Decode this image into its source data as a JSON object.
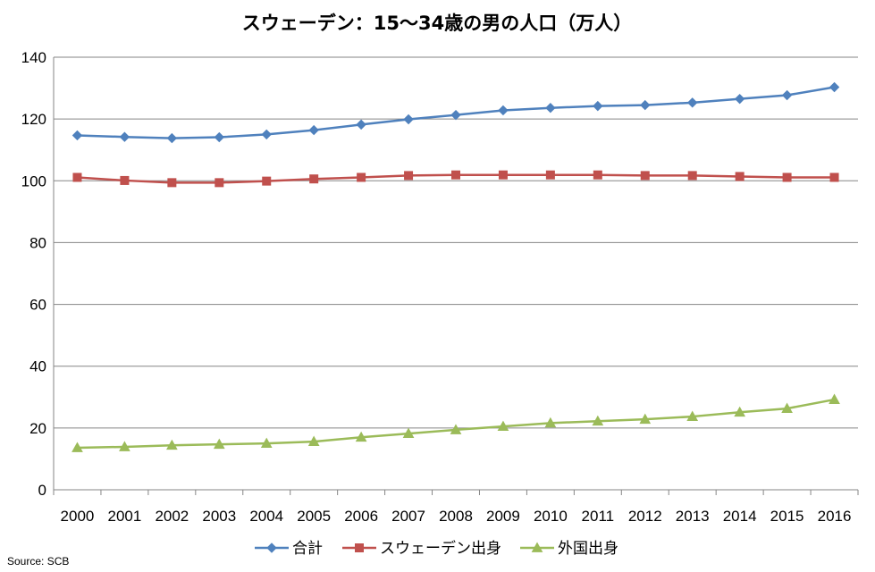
{
  "chart_data": {
    "type": "line",
    "title": "スウェーデン：15～34歳の男の人口（万人）",
    "xlabel": "",
    "ylabel": "",
    "categories": [
      "2000",
      "2001",
      "2002",
      "2003",
      "2004",
      "2005",
      "2006",
      "2007",
      "2008",
      "2009",
      "2010",
      "2011",
      "2012",
      "2013",
      "2014",
      "2015",
      "2016"
    ],
    "ylim": [
      0,
      140
    ],
    "yticks": [
      0,
      20,
      40,
      60,
      80,
      100,
      120,
      140
    ],
    "grid": "horizontal",
    "legend_position": "bottom",
    "series": [
      {
        "name": "合計",
        "color": "#4F81BD",
        "marker": "diamond",
        "values": [
          114.7,
          114.2,
          113.8,
          114.1,
          115.0,
          116.4,
          118.2,
          119.9,
          121.3,
          122.8,
          123.6,
          124.2,
          124.5,
          125.3,
          126.5,
          127.7,
          130.3
        ]
      },
      {
        "name": "スウェーデン出身",
        "color": "#C0504D",
        "marker": "square",
        "values": [
          101.1,
          100.1,
          99.4,
          99.4,
          99.9,
          100.6,
          101.1,
          101.7,
          101.9,
          101.9,
          101.9,
          101.9,
          101.7,
          101.7,
          101.4,
          101.1,
          101.1
        ]
      },
      {
        "name": "外国出身",
        "color": "#9BBB59",
        "marker": "triangle",
        "values": [
          13.6,
          13.9,
          14.4,
          14.7,
          15.0,
          15.6,
          17.0,
          18.2,
          19.4,
          20.5,
          21.6,
          22.2,
          22.8,
          23.7,
          25.1,
          26.3,
          29.2
        ]
      }
    ],
    "source": "Source: SCB"
  }
}
